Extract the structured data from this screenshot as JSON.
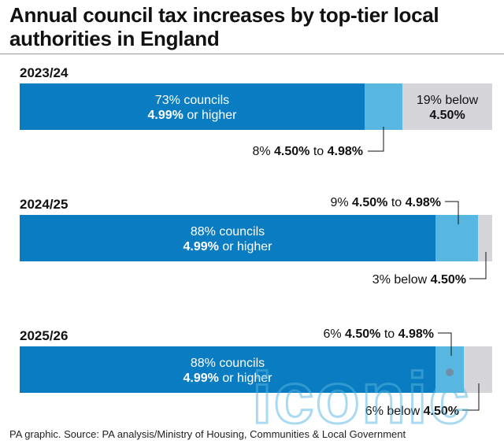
{
  "title": "Annual council tax increases by top-tier local authorities in England",
  "source": "PA graphic. Source: PA analysis/Ministry of Housing, Communities & Local Government",
  "watermark": "iconic",
  "colors": {
    "dark": "#0a7cc1",
    "light": "#57b7e0",
    "grey": "#d5d5da",
    "rule": "#9a9a9a"
  },
  "chart_data": {
    "type": "bar",
    "orientation": "horizontal-stacked-100",
    "categories": [
      "2023/24",
      "2024/25",
      "2025/26"
    ],
    "series": [
      {
        "name": "4.99% or higher",
        "values": [
          73,
          88,
          88
        ]
      },
      {
        "name": "4.50% to 4.98%",
        "values": [
          8,
          9,
          6
        ]
      },
      {
        "name": "below 4.50%",
        "values": [
          19,
          3,
          6
        ]
      }
    ],
    "xlim": [
      0,
      100
    ],
    "labels": {
      "2023/24": {
        "main": [
          "73% councils",
          "4.99% or higher"
        ],
        "mid": [
          "8% ",
          "4.50%",
          " to ",
          "4.98%"
        ],
        "low": [
          "19% below",
          "4.50%"
        ]
      },
      "2024/25": {
        "main": [
          "88% councils",
          "4.99% or higher"
        ],
        "mid": [
          "9% ",
          "4.50%",
          " to ",
          "4.98%"
        ],
        "low": [
          "3% below ",
          "4.50%"
        ]
      },
      "2025/26": {
        "main": [
          "88% councils",
          "4.99% or higher"
        ],
        "mid": [
          "6% ",
          "4.50%",
          " to ",
          "4.98%"
        ],
        "low": [
          "6% below ",
          "4.50%"
        ]
      }
    }
  }
}
